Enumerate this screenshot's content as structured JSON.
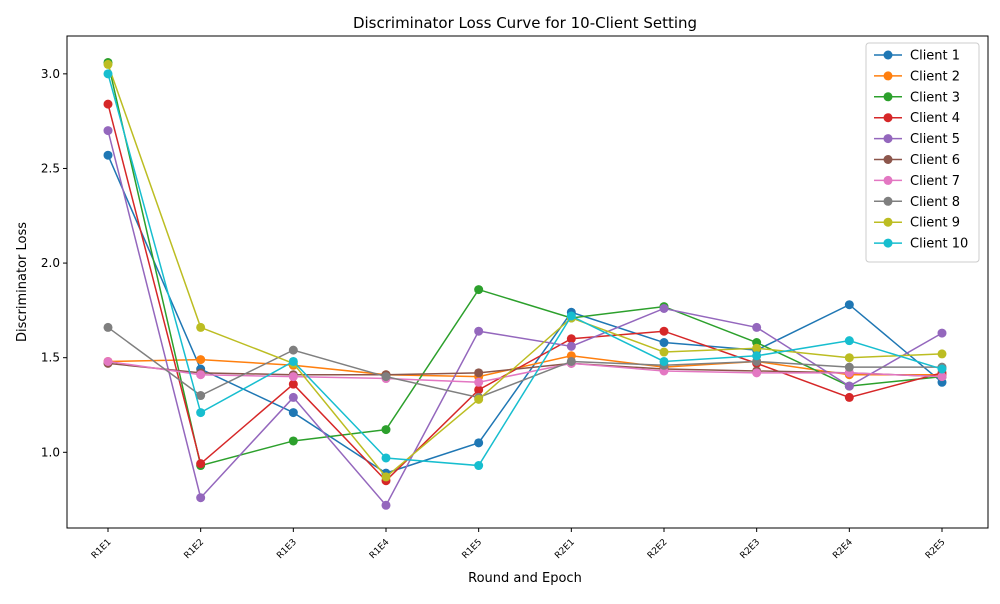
{
  "chart_data": {
    "type": "line",
    "title": "Discriminator Loss Curve for 10-Client Setting",
    "xlabel": "Round and Epoch",
    "ylabel": "Discriminator Loss",
    "categories": [
      "R1E1",
      "R1E2",
      "R1E3",
      "R1E4",
      "R1E5",
      "R2E1",
      "R2E2",
      "R2E3",
      "R2E4",
      "R2E5"
    ],
    "yticks": [
      "1.0",
      "1.5",
      "2.0",
      "2.5",
      "3.0"
    ],
    "ylim": [
      0.6,
      3.2
    ],
    "grid": false,
    "legend_position": "top-right",
    "series": [
      {
        "name": "Client 1",
        "color": "#1f77b4",
        "values": [
          2.57,
          1.44,
          1.21,
          0.89,
          1.05,
          1.74,
          1.58,
          1.54,
          1.78,
          1.37
        ]
      },
      {
        "name": "Client 2",
        "color": "#ff7f0e",
        "values": [
          1.48,
          1.49,
          1.46,
          1.41,
          1.4,
          1.51,
          1.45,
          1.48,
          1.41,
          1.41
        ]
      },
      {
        "name": "Client 3",
        "color": "#2ca02c",
        "values": [
          3.06,
          0.93,
          1.06,
          1.12,
          1.86,
          1.71,
          1.77,
          1.58,
          1.35,
          1.4
        ]
      },
      {
        "name": "Client 4",
        "color": "#d62728",
        "values": [
          2.84,
          0.94,
          1.36,
          0.85,
          1.33,
          1.6,
          1.64,
          1.47,
          1.29,
          1.42
        ]
      },
      {
        "name": "Client 5",
        "color": "#9467bd",
        "values": [
          2.7,
          0.76,
          1.29,
          0.72,
          1.64,
          1.56,
          1.76,
          1.66,
          1.35,
          1.63
        ]
      },
      {
        "name": "Client 6",
        "color": "#8c564b",
        "values": [
          1.47,
          1.42,
          1.41,
          1.41,
          1.42,
          1.47,
          1.44,
          1.43,
          1.42,
          1.4
        ]
      },
      {
        "name": "Client 7",
        "color": "#e377c2",
        "values": [
          1.48,
          1.41,
          1.4,
          1.39,
          1.37,
          1.47,
          1.43,
          1.42,
          1.42,
          1.4
        ]
      },
      {
        "name": "Client 8",
        "color": "#7f7f7f",
        "values": [
          1.66,
          1.3,
          1.54,
          1.4,
          1.29,
          1.48,
          1.46,
          1.48,
          1.45,
          1.45
        ]
      },
      {
        "name": "Client 9",
        "color": "#bcbd22",
        "values": [
          3.05,
          1.66,
          1.47,
          0.87,
          1.28,
          1.71,
          1.53,
          1.55,
          1.5,
          1.52
        ]
      },
      {
        "name": "Client 10",
        "color": "#17becf",
        "values": [
          3.0,
          1.21,
          1.48,
          0.97,
          0.93,
          1.72,
          1.48,
          1.51,
          1.59,
          1.44
        ]
      }
    ]
  }
}
